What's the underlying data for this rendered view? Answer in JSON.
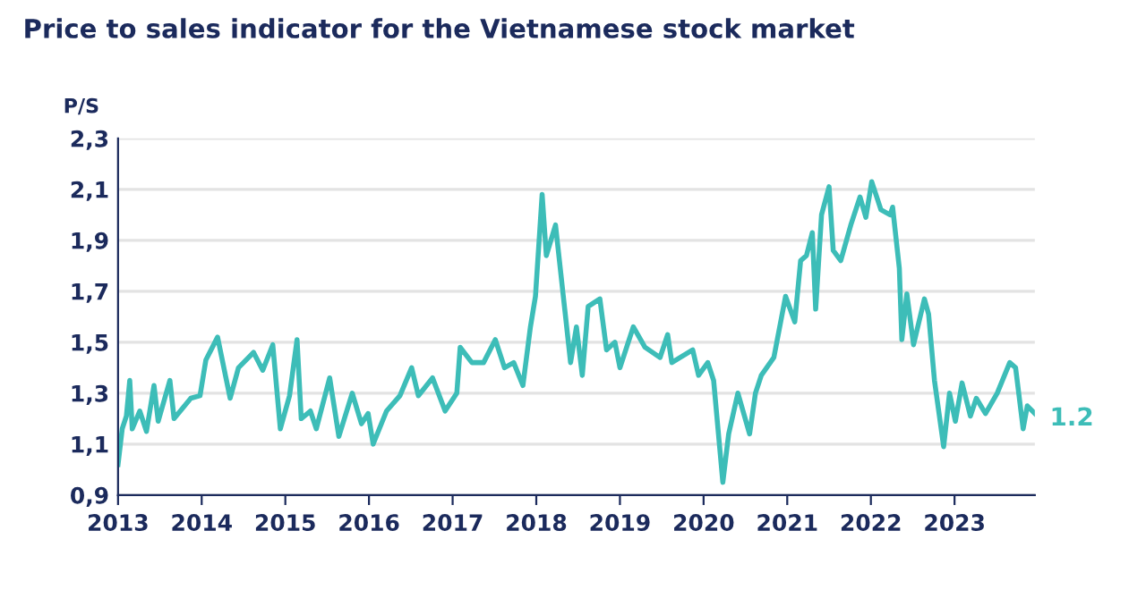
{
  "chart_data": {
    "type": "line",
    "title": "Price to sales indicator for the Vietnamese stock market",
    "ylabel": "P/S",
    "series": [
      {
        "color": "#3dbdb8",
        "x": [
          2013.0,
          2013.05,
          2013.1,
          2013.14,
          2013.17,
          2013.26,
          2013.34,
          2013.43,
          2013.48,
          2013.62,
          2013.67,
          2013.87,
          2013.98,
          2014.05,
          2014.19,
          2014.34,
          2014.44,
          2014.62,
          2014.73,
          2014.85,
          2014.94,
          2015.05,
          2015.14,
          2015.19,
          2015.3,
          2015.37,
          2015.53,
          2015.64,
          2015.8,
          2015.91,
          2015.99,
          2016.05,
          2016.21,
          2016.37,
          2016.51,
          2016.59,
          2016.76,
          2016.91,
          2017.05,
          2017.09,
          2017.23,
          2017.37,
          2017.51,
          2017.62,
          2017.73,
          2017.84,
          2017.93,
          2017.99,
          2018.07,
          2018.12,
          2018.23,
          2018.34,
          2018.41,
          2018.48,
          2018.55,
          2018.62,
          2018.76,
          2018.84,
          2018.94,
          2019.0,
          2019.16,
          2019.3,
          2019.48,
          2019.57,
          2019.62,
          2019.87,
          2019.94,
          2020.05,
          2020.12,
          2020.23,
          2020.3,
          2020.41,
          2020.55,
          2020.62,
          2020.69,
          2020.84,
          2020.98,
          2021.09,
          2021.16,
          2021.23,
          2021.3,
          2021.34,
          2021.41,
          2021.5,
          2021.55,
          2021.64,
          2021.76,
          2021.87,
          2021.94,
          2022.01,
          2022.12,
          2022.23,
          2022.26,
          2022.34,
          2022.37,
          2022.43,
          2022.51,
          2022.64,
          2022.69,
          2022.76,
          2022.87,
          2022.94,
          2023.01,
          2023.09,
          2023.19,
          2023.26,
          2023.37,
          2023.51,
          2023.66,
          2023.73,
          2023.82,
          2023.87,
          2023.96
        ],
        "values": [
          1.02,
          1.16,
          1.21,
          1.35,
          1.16,
          1.23,
          1.15,
          1.33,
          1.19,
          1.35,
          1.2,
          1.28,
          1.29,
          1.43,
          1.52,
          1.28,
          1.4,
          1.46,
          1.39,
          1.49,
          1.16,
          1.29,
          1.51,
          1.2,
          1.23,
          1.16,
          1.36,
          1.13,
          1.3,
          1.18,
          1.22,
          1.1,
          1.23,
          1.29,
          1.4,
          1.29,
          1.36,
          1.23,
          1.3,
          1.48,
          1.42,
          1.42,
          1.51,
          1.4,
          1.42,
          1.33,
          1.56,
          1.68,
          2.08,
          1.84,
          1.96,
          1.63,
          1.42,
          1.56,
          1.37,
          1.64,
          1.67,
          1.47,
          1.5,
          1.4,
          1.56,
          1.48,
          1.44,
          1.53,
          1.42,
          1.47,
          1.37,
          1.42,
          1.35,
          0.95,
          1.14,
          1.3,
          1.14,
          1.3,
          1.37,
          1.44,
          1.68,
          1.58,
          1.82,
          1.84,
          1.93,
          1.63,
          2.0,
          2.11,
          1.86,
          1.82,
          1.96,
          2.07,
          1.99,
          2.13,
          2.02,
          2.0,
          2.03,
          1.79,
          1.51,
          1.69,
          1.49,
          1.67,
          1.61,
          1.35,
          1.09,
          1.3,
          1.19,
          1.34,
          1.21,
          1.28,
          1.22,
          1.3,
          1.42,
          1.4,
          1.16,
          1.25,
          1.22
        ]
      }
    ],
    "xlim": [
      2013,
      2023.96
    ],
    "xticks": [
      2013,
      2014,
      2015,
      2016,
      2017,
      2018,
      2019,
      2020,
      2021,
      2022,
      2023
    ],
    "ylim": [
      0.9,
      2.3
    ],
    "yticks": [
      {
        "value": 0.9,
        "label": "0,9"
      },
      {
        "value": 1.1,
        "label": "1,1"
      },
      {
        "value": 1.3,
        "label": "1,3"
      },
      {
        "value": 1.5,
        "label": "1,5"
      },
      {
        "value": 1.7,
        "label": "1,7"
      },
      {
        "value": 1.9,
        "label": "1,9"
      },
      {
        "value": 2.1,
        "label": "2,1"
      },
      {
        "value": 2.3,
        "label": "2,3"
      }
    ],
    "grid": "y",
    "annotations": [
      {
        "text": "1.2",
        "x": 2023.96,
        "y": 1.2
      }
    ]
  }
}
